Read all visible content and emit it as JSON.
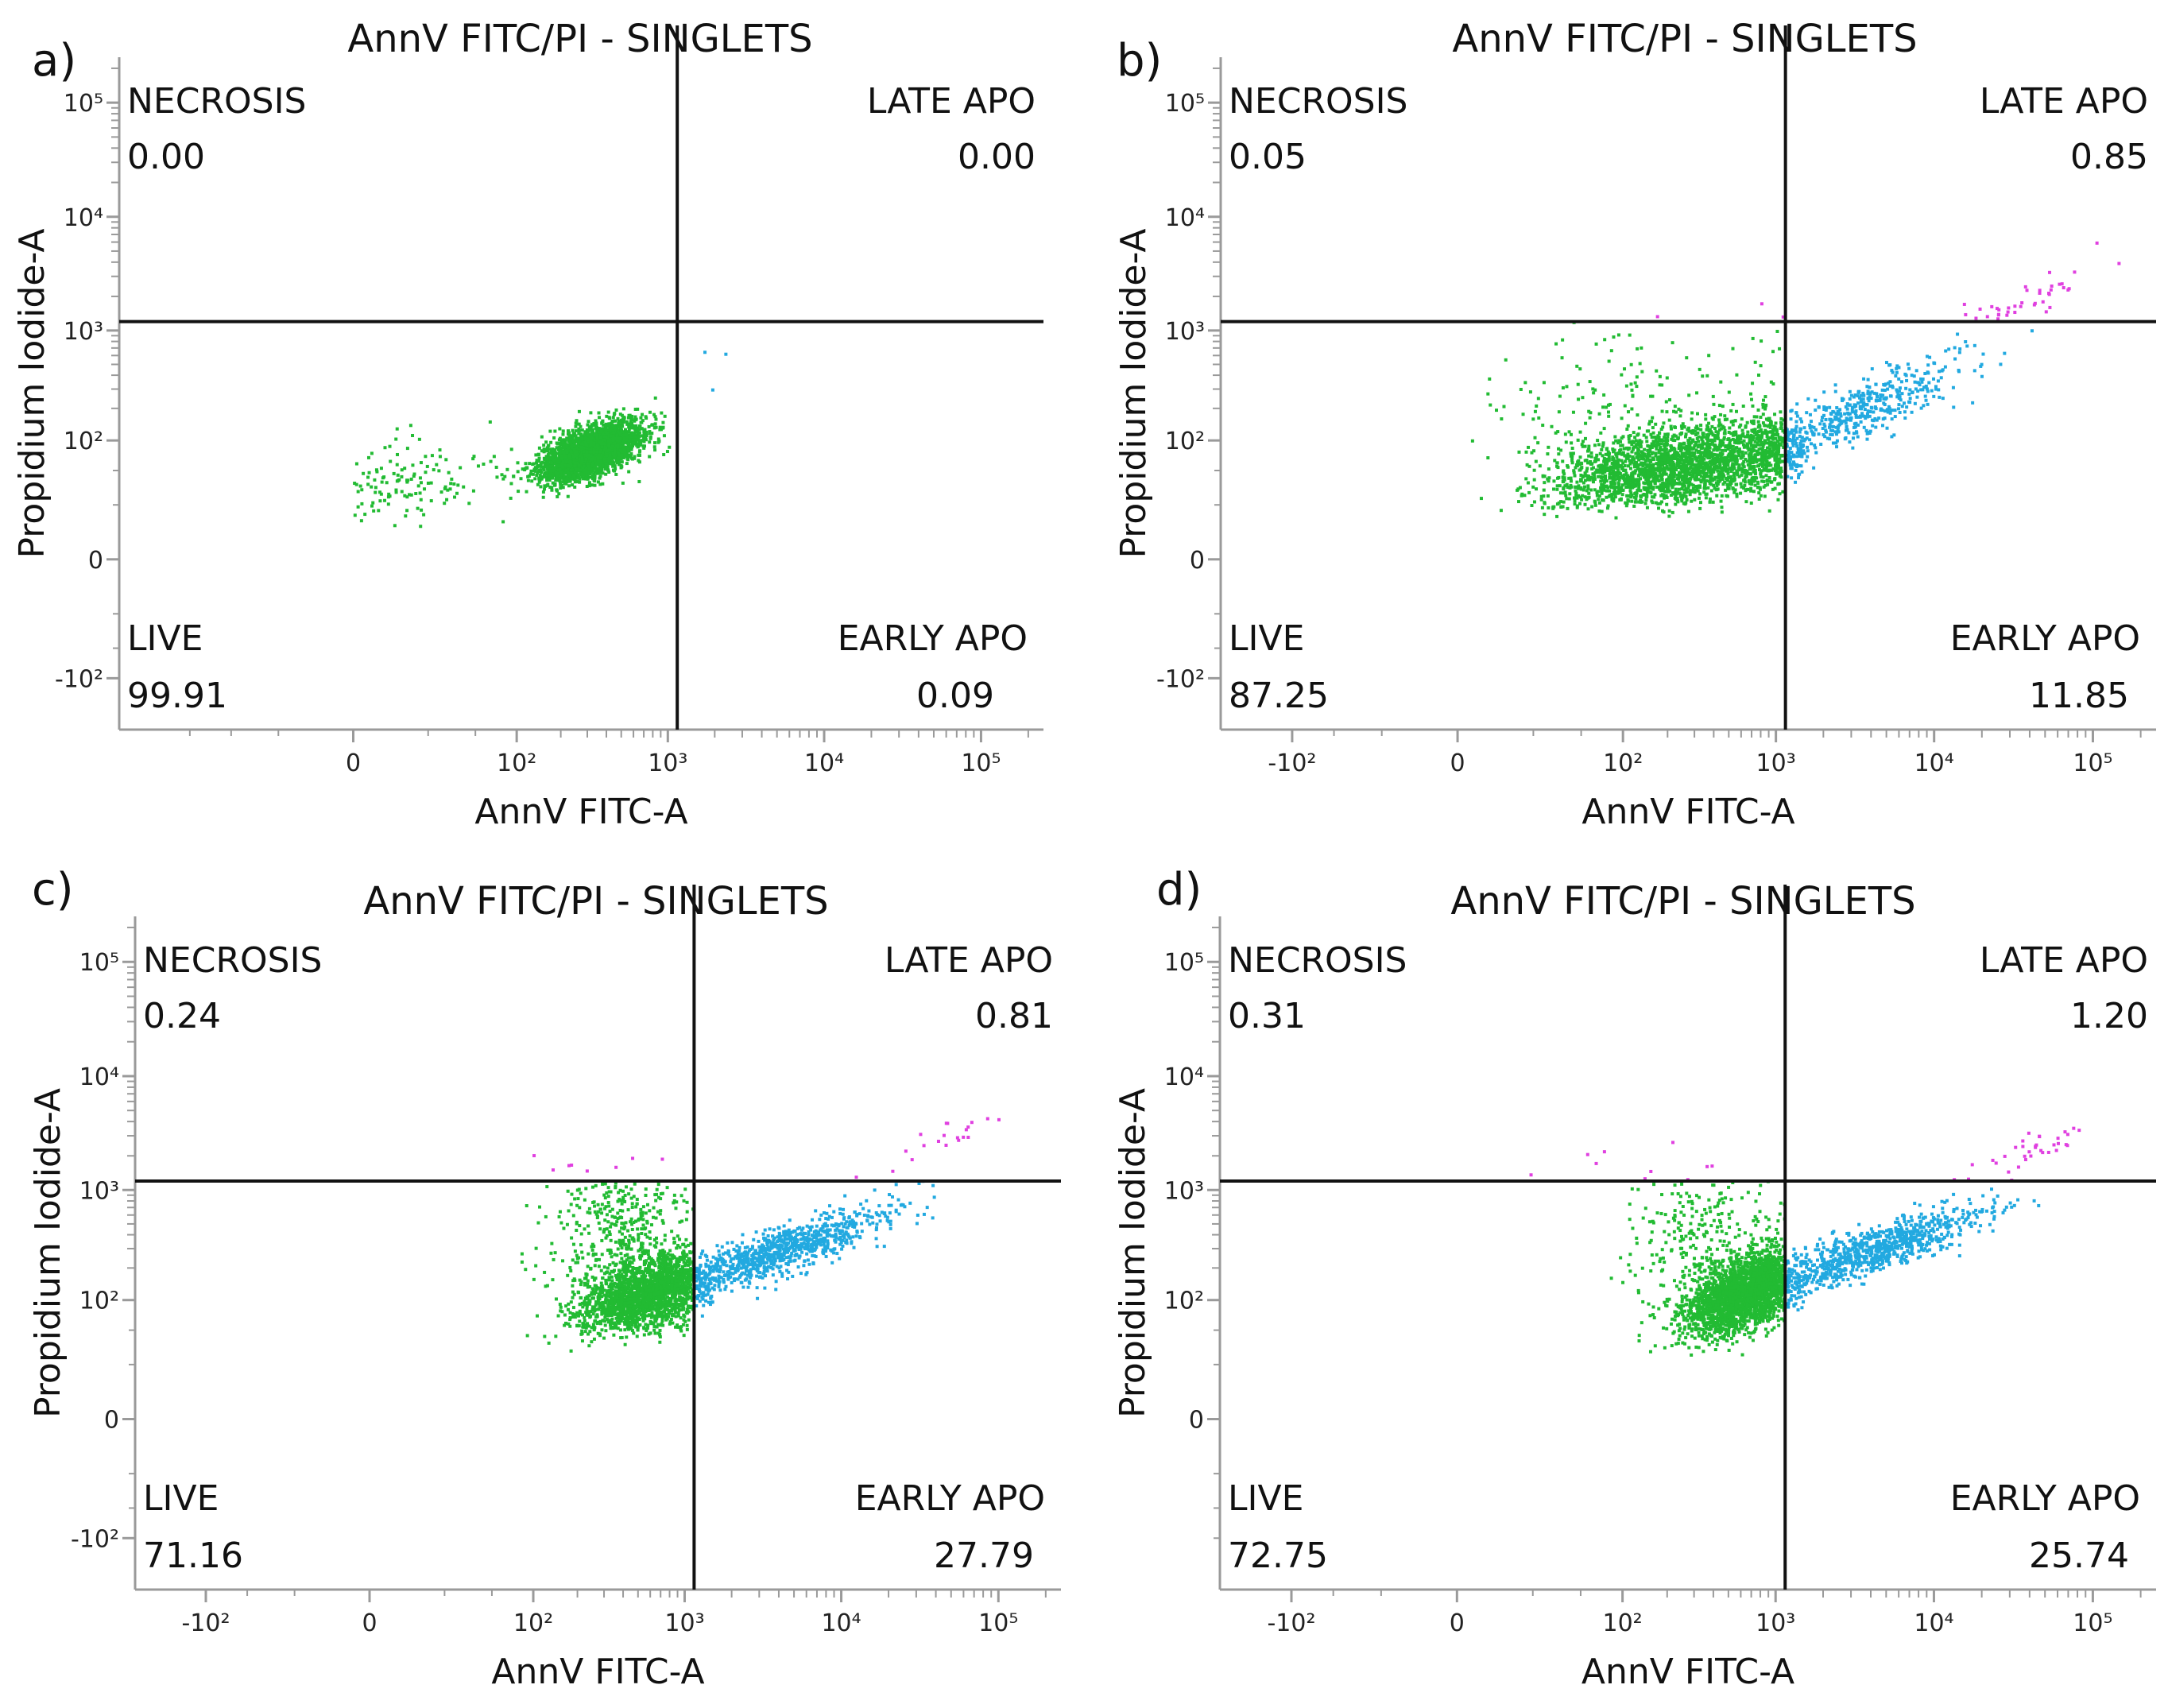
{
  "chart_data": [
    {
      "panel_label": "a)",
      "type": "scatter",
      "title": "AnnV FITC/PI - SINGLETS",
      "xlabel": "AnnV FITC-A",
      "ylabel": "Propidium Iodide-A",
      "x_ticks": [
        "0",
        "10²",
        "10³",
        "10⁴",
        "10⁵"
      ],
      "y_ticks": [
        "-10²",
        "0",
        "10²",
        "10³",
        "10⁴",
        "10⁵"
      ],
      "x_scale": "biexponential",
      "y_scale": "biexponential",
      "gate": {
        "x": 1150,
        "y": 1200
      },
      "quadrants": {
        "upper_left": {
          "name": "NECROSIS",
          "value": "0.00"
        },
        "upper_right": {
          "name": "LATE APO",
          "value": "0.00"
        },
        "lower_left": {
          "name": "LIVE",
          "value": "99.91"
        },
        "lower_right": {
          "name": "EARLY APO",
          "value": "0.09"
        }
      },
      "population": [
        {
          "quadrant": "LIVE",
          "color": "#22bb33",
          "count": 2600,
          "center_x_log": 2.5,
          "center_y_log": 1.88,
          "spread_x_log": 0.17,
          "spread_y_log": 0.15,
          "correlation": 0.6
        },
        {
          "quadrant": "LIVE",
          "color": "#22bb33",
          "count": 140,
          "center_x_log": 1.2,
          "center_y_log": 1.6,
          "spread_x_log": 0.6,
          "spread_y_log": 0.25,
          "correlation": 0.3
        },
        {
          "quadrant": "EARLY APO",
          "color": "#22a9e0",
          "count": 3,
          "center_x_log": 3.3,
          "center_y_log": 2.6,
          "spread_x_log": 0.1,
          "spread_y_log": 0.2,
          "correlation": 0
        }
      ]
    },
    {
      "panel_label": "b)",
      "type": "scatter",
      "title": "AnnV FITC/PI - SINGLETS",
      "xlabel": "AnnV FITC-A",
      "ylabel": "Propidium Iodide-A",
      "x_ticks": [
        "-10²",
        "0",
        "10²",
        "10³",
        "10⁴",
        "10⁵"
      ],
      "y_ticks": [
        "-10²",
        "0",
        "10²",
        "10³",
        "10⁴",
        "10⁵"
      ],
      "x_scale": "biexponential",
      "y_scale": "biexponential",
      "gate": {
        "x": 1150,
        "y": 1200
      },
      "quadrants": {
        "upper_left": {
          "name": "NECROSIS",
          "value": "0.05"
        },
        "upper_right": {
          "name": "LATE APO",
          "value": "0.85"
        },
        "lower_left": {
          "name": "LIVE",
          "value": "87.25"
        },
        "lower_right": {
          "name": "EARLY APO",
          "value": "11.85"
        }
      },
      "population": [
        {
          "quadrant": "LIVE",
          "color": "#22bb33",
          "count": 2400,
          "center_x_log": 2.4,
          "center_y_log": 1.75,
          "spread_x_log": 0.45,
          "spread_y_log": 0.22,
          "correlation": 0.4
        },
        {
          "quadrant": "LIVE",
          "color": "#22bb33",
          "count": 160,
          "center_x_log": 2.0,
          "center_y_log": 2.4,
          "spread_x_log": 0.6,
          "spread_y_log": 0.35,
          "correlation": 0.2
        },
        {
          "quadrant": "EARLY APO",
          "color": "#22a9e0",
          "count": 520,
          "center_x_log": 3.5,
          "center_y_log": 2.25,
          "spread_x_log": 0.35,
          "spread_y_log": 0.25,
          "correlation": 0.85
        },
        {
          "quadrant": "LATE APO",
          "color": "#e040e0",
          "count": 40,
          "center_x_log": 4.6,
          "center_y_log": 3.3,
          "spread_x_log": 0.2,
          "spread_y_log": 0.15,
          "correlation": 0.8
        },
        {
          "quadrant": "NECROSIS",
          "color": "#e040e0",
          "count": 3,
          "center_x_log": 2.5,
          "center_y_log": 3.25,
          "spread_x_log": 0.5,
          "spread_y_log": 0.1,
          "correlation": 0
        }
      ]
    },
    {
      "panel_label": "c)",
      "type": "scatter",
      "title": "AnnV FITC/PI - SINGLETS",
      "xlabel": "AnnV FITC-A",
      "ylabel": "Propidium Iodide-A",
      "x_ticks": [
        "-10²",
        "0",
        "10²",
        "10³",
        "10⁴",
        "10⁵"
      ],
      "y_ticks": [
        "-10²",
        "0",
        "10²",
        "10³",
        "10⁴",
        "10⁵"
      ],
      "x_scale": "biexponential",
      "y_scale": "biexponential",
      "gate": {
        "x": 1150,
        "y": 1200
      },
      "quadrants": {
        "upper_left": {
          "name": "NECROSIS",
          "value": "0.24"
        },
        "upper_right": {
          "name": "LATE APO",
          "value": "0.81"
        },
        "lower_left": {
          "name": "LIVE",
          "value": "71.16"
        },
        "lower_right": {
          "name": "EARLY APO",
          "value": "27.79"
        }
      },
      "population": [
        {
          "quadrant": "LIVE",
          "color": "#22bb33",
          "count": 1900,
          "center_x_log": 2.75,
          "center_y_log": 2.05,
          "spread_x_log": 0.22,
          "spread_y_log": 0.18,
          "correlation": 0.4
        },
        {
          "quadrant": "LIVE",
          "color": "#22bb33",
          "count": 380,
          "center_x_log": 2.55,
          "center_y_log": 2.6,
          "spread_x_log": 0.25,
          "spread_y_log": 0.3,
          "correlation": 0.1
        },
        {
          "quadrant": "EARLY APO",
          "color": "#22a9e0",
          "count": 950,
          "center_x_log": 3.6,
          "center_y_log": 2.45,
          "spread_x_log": 0.35,
          "spread_y_log": 0.2,
          "correlation": 0.85
        },
        {
          "quadrant": "LATE APO",
          "color": "#e040e0",
          "count": 20,
          "center_x_log": 4.6,
          "center_y_log": 3.4,
          "spread_x_log": 0.2,
          "spread_y_log": 0.15,
          "correlation": 0.8
        },
        {
          "quadrant": "NECROSIS",
          "color": "#e040e0",
          "count": 8,
          "center_x_log": 2.6,
          "center_y_log": 3.2,
          "spread_x_log": 0.35,
          "spread_y_log": 0.1,
          "correlation": 0
        }
      ]
    },
    {
      "panel_label": "d)",
      "type": "scatter",
      "title": "AnnV FITC/PI - SINGLETS",
      "xlabel": "AnnV FITC-A",
      "ylabel": "Propidium Iodide-A",
      "x_ticks": [
        "-10²",
        "0",
        "10²",
        "10³",
        "10⁴",
        "10⁵"
      ],
      "y_ticks": [
        "0",
        "10²",
        "10³",
        "10⁴",
        "10⁵"
      ],
      "x_scale": "biexponential",
      "y_scale": "biexponential",
      "gate": {
        "x": 1150,
        "y": 1200
      },
      "quadrants": {
        "upper_left": {
          "name": "NECROSIS",
          "value": "0.31"
        },
        "upper_right": {
          "name": "LATE APO",
          "value": "1.20"
        },
        "lower_left": {
          "name": "LIVE",
          "value": "72.75"
        },
        "lower_right": {
          "name": "EARLY APO",
          "value": "25.74"
        }
      },
      "population": [
        {
          "quadrant": "LIVE",
          "color": "#22bb33",
          "count": 2300,
          "center_x_log": 2.8,
          "center_y_log": 2.05,
          "spread_x_log": 0.2,
          "spread_y_log": 0.2,
          "correlation": 0.5
        },
        {
          "quadrant": "LIVE",
          "color": "#22bb33",
          "count": 260,
          "center_x_log": 2.55,
          "center_y_log": 2.55,
          "spread_x_log": 0.25,
          "spread_y_log": 0.3,
          "correlation": 0.1
        },
        {
          "quadrant": "EARLY APO",
          "color": "#22a9e0",
          "count": 900,
          "center_x_log": 3.6,
          "center_y_log": 2.45,
          "spread_x_log": 0.35,
          "spread_y_log": 0.2,
          "correlation": 0.85
        },
        {
          "quadrant": "LATE APO",
          "color": "#e040e0",
          "count": 35,
          "center_x_log": 4.6,
          "center_y_log": 3.35,
          "spread_x_log": 0.2,
          "spread_y_log": 0.15,
          "correlation": 0.8
        },
        {
          "quadrant": "NECROSIS",
          "color": "#e040e0",
          "count": 10,
          "center_x_log": 2.2,
          "center_y_log": 3.2,
          "spread_x_log": 0.6,
          "spread_y_log": 0.1,
          "correlation": 0
        }
      ]
    }
  ]
}
